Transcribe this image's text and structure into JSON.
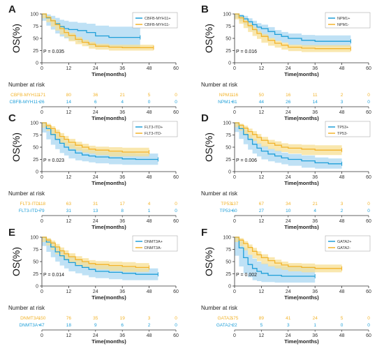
{
  "colors": {
    "blue": "#1f9fd8",
    "orange": "#f2b32a",
    "blue_band": "#a9d7f2",
    "orange_band": "#f7df93"
  },
  "common": {
    "xlabel": "Time(months)",
    "ylabel": "OS(%)",
    "risk_title": "Number at risk",
    "x_ticks": [
      0,
      12,
      24,
      36,
      48,
      60
    ],
    "y_ticks": [
      0,
      25,
      50,
      75,
      100
    ]
  },
  "chart_data": [
    {
      "panel": "A",
      "type": "line",
      "xlim": [
        0,
        60
      ],
      "ylim": [
        0,
        100
      ],
      "pvalue": "P = 0.035",
      "series": [
        {
          "name": "CBFB-MYH11+",
          "color": "#1f9fd8",
          "x": [
            0,
            2,
            4,
            6,
            8,
            10,
            12,
            16,
            20,
            24,
            30,
            36,
            44
          ],
          "y": [
            100,
            92,
            86,
            80,
            74,
            70,
            68,
            66,
            62,
            55,
            52,
            52,
            52
          ],
          "ci_lo": [
            100,
            86,
            76,
            68,
            60,
            54,
            50,
            46,
            42,
            35,
            32,
            32,
            32
          ],
          "ci_hi": [
            100,
            99,
            96,
            92,
            88,
            86,
            84,
            82,
            80,
            76,
            74,
            74,
            74
          ]
        },
        {
          "name": "CBFB-MYH11-",
          "color": "#f2b32a",
          "x": [
            0,
            2,
            4,
            6,
            8,
            10,
            12,
            15,
            18,
            21,
            24,
            30,
            36,
            42,
            50
          ],
          "y": [
            100,
            93,
            86,
            78,
            70,
            62,
            56,
            48,
            42,
            38,
            34,
            32,
            31,
            31,
            31
          ],
          "ci_lo": [
            100,
            91,
            83,
            74,
            66,
            58,
            52,
            44,
            38,
            34,
            29,
            27,
            25,
            25,
            25
          ],
          "ci_hi": [
            100,
            96,
            90,
            83,
            76,
            67,
            61,
            53,
            47,
            43,
            39,
            37,
            37,
            37,
            37
          ]
        }
      ],
      "risk_rows": [
        {
          "label": "CBFB-MYH11-",
          "values": [
            "171",
            "80",
            "36",
            "21",
            "5",
            "0"
          ]
        },
        {
          "label": "CBFB-MYH11+",
          "values": [
            "26",
            "14",
            "6",
            "4",
            "0",
            "0"
          ]
        }
      ]
    },
    {
      "panel": "B",
      "type": "line",
      "xlim": [
        0,
        60
      ],
      "ylim": [
        0,
        100
      ],
      "pvalue": "P = 0.016",
      "series": [
        {
          "name": "NPM1+",
          "color": "#1f9fd8",
          "x": [
            0,
            2,
            4,
            6,
            8,
            10,
            12,
            15,
            18,
            21,
            24,
            30,
            36,
            42,
            52
          ],
          "y": [
            100,
            96,
            90,
            84,
            78,
            73,
            70,
            64,
            58,
            54,
            50,
            46,
            44,
            44,
            44
          ],
          "ci_lo": [
            100,
            92,
            85,
            78,
            71,
            65,
            62,
            55,
            49,
            45,
            41,
            36,
            33,
            33,
            33
          ],
          "ci_hi": [
            100,
            99,
            96,
            91,
            86,
            81,
            78,
            73,
            67,
            63,
            60,
            57,
            56,
            56,
            56
          ]
        },
        {
          "name": "NPM1-",
          "color": "#f2b32a",
          "x": [
            0,
            2,
            4,
            6,
            8,
            10,
            12,
            15,
            18,
            21,
            24,
            30,
            36,
            42,
            52
          ],
          "y": [
            100,
            92,
            84,
            76,
            68,
            60,
            54,
            46,
            40,
            36,
            32,
            30,
            29,
            29,
            29
          ],
          "ci_lo": [
            100,
            89,
            80,
            71,
            63,
            55,
            49,
            41,
            35,
            31,
            27,
            24,
            22,
            22,
            22
          ],
          "ci_hi": [
            100,
            95,
            88,
            81,
            73,
            65,
            59,
            51,
            45,
            41,
            37,
            36,
            36,
            36,
            36
          ]
        }
      ],
      "risk_rows": [
        {
          "label": "NPM1-",
          "values": [
            "116",
            "50",
            "16",
            "11",
            "2",
            "0"
          ]
        },
        {
          "label": "NPM1+",
          "values": [
            "81",
            "44",
            "26",
            "14",
            "3",
            "0"
          ]
        }
      ]
    },
    {
      "panel": "C",
      "type": "line",
      "xlim": [
        0,
        60
      ],
      "ylim": [
        0,
        100
      ],
      "pvalue": "P = 0.023",
      "series": [
        {
          "name": "FLT3-ITD+",
          "color": "#1f9fd8",
          "x": [
            0,
            2,
            4,
            6,
            8,
            10,
            12,
            15,
            18,
            21,
            24,
            30,
            36,
            42,
            48,
            52
          ],
          "y": [
            100,
            88,
            76,
            66,
            58,
            50,
            44,
            38,
            34,
            32,
            30,
            28,
            26,
            25,
            25,
            25
          ],
          "ci_lo": [
            100,
            80,
            66,
            55,
            46,
            38,
            33,
            27,
            23,
            21,
            19,
            17,
            15,
            14,
            14,
            14
          ],
          "ci_hi": [
            100,
            95,
            86,
            78,
            70,
            62,
            56,
            50,
            46,
            44,
            42,
            40,
            38,
            37,
            37,
            37
          ]
        },
        {
          "name": "FLT3-ITD-",
          "color": "#f2b32a",
          "x": [
            0,
            2,
            4,
            6,
            8,
            10,
            12,
            15,
            18,
            21,
            24,
            30,
            36,
            42,
            48
          ],
          "y": [
            100,
            94,
            88,
            80,
            72,
            66,
            60,
            54,
            50,
            46,
            44,
            42,
            40,
            40,
            40
          ],
          "ci_lo": [
            100,
            90,
            83,
            74,
            65,
            59,
            53,
            47,
            43,
            39,
            37,
            34,
            31,
            31,
            31
          ],
          "ci_hi": [
            100,
            98,
            93,
            86,
            79,
            73,
            67,
            61,
            57,
            53,
            51,
            50,
            49,
            49,
            49
          ]
        }
      ],
      "risk_rows": [
        {
          "label": "FLT3-ITD-",
          "values": [
            "118",
            "63",
            "31",
            "17",
            "4",
            "0"
          ]
        },
        {
          "label": "FLT3-ITD+",
          "values": [
            "79",
            "31",
            "13",
            "8",
            "1",
            "0"
          ]
        }
      ]
    },
    {
      "panel": "D",
      "type": "line",
      "xlim": [
        0,
        60
      ],
      "ylim": [
        0,
        100
      ],
      "pvalue": "P = 0.006",
      "series": [
        {
          "name": "TP53+",
          "color": "#1f9fd8",
          "x": [
            0,
            2,
            4,
            6,
            8,
            10,
            12,
            15,
            18,
            21,
            24,
            30,
            36,
            42,
            48
          ],
          "y": [
            100,
            88,
            76,
            66,
            56,
            48,
            42,
            36,
            32,
            28,
            25,
            22,
            18,
            16,
            16
          ],
          "ci_lo": [
            100,
            81,
            67,
            56,
            45,
            37,
            31,
            25,
            21,
            18,
            15,
            12,
            8,
            6,
            6
          ],
          "ci_hi": [
            100,
            95,
            85,
            76,
            67,
            59,
            53,
            47,
            43,
            39,
            36,
            33,
            29,
            27,
            27
          ]
        },
        {
          "name": "TP53-",
          "color": "#f2b32a",
          "x": [
            0,
            2,
            4,
            6,
            8,
            10,
            12,
            15,
            18,
            21,
            24,
            30,
            36,
            42,
            48
          ],
          "y": [
            100,
            95,
            89,
            82,
            76,
            70,
            64,
            58,
            54,
            50,
            48,
            46,
            44,
            44,
            44
          ],
          "ci_lo": [
            100,
            91,
            84,
            76,
            69,
            63,
            57,
            51,
            46,
            42,
            40,
            37,
            34,
            34,
            34
          ],
          "ci_hi": [
            100,
            98,
            94,
            88,
            83,
            77,
            71,
            65,
            62,
            58,
            56,
            55,
            54,
            54,
            54
          ]
        }
      ],
      "risk_rows": [
        {
          "label": "TP53-",
          "values": [
            "137",
            "67",
            "34",
            "21",
            "3",
            "0"
          ]
        },
        {
          "label": "TP53+",
          "values": [
            "60",
            "27",
            "10",
            "4",
            "2",
            "0"
          ]
        }
      ]
    },
    {
      "panel": "E",
      "type": "line",
      "xlim": [
        0,
        60
      ],
      "ylim": [
        0,
        100
      ],
      "pvalue": "P = 0.014",
      "series": [
        {
          "name": "DNMT3A+",
          "color": "#1f9fd8",
          "x": [
            0,
            2,
            4,
            6,
            8,
            10,
            12,
            15,
            18,
            21,
            24,
            30,
            36,
            42,
            48,
            52
          ],
          "y": [
            100,
            90,
            80,
            70,
            62,
            54,
            48,
            42,
            38,
            34,
            30,
            28,
            26,
            24,
            24,
            24
          ],
          "ci_lo": [
            100,
            82,
            70,
            59,
            50,
            42,
            36,
            30,
            26,
            22,
            18,
            16,
            14,
            12,
            12,
            12
          ],
          "ci_hi": [
            100,
            97,
            90,
            81,
            74,
            66,
            60,
            54,
            50,
            46,
            42,
            40,
            38,
            36,
            36,
            36
          ]
        },
        {
          "name": "DNMT3A-",
          "color": "#f2b32a",
          "x": [
            0,
            2,
            4,
            6,
            8,
            10,
            12,
            15,
            18,
            21,
            24,
            30,
            36,
            42,
            48
          ],
          "y": [
            100,
            94,
            88,
            80,
            72,
            66,
            60,
            54,
            50,
            46,
            44,
            42,
            40,
            38,
            38
          ],
          "ci_lo": [
            100,
            90,
            83,
            74,
            65,
            59,
            53,
            47,
            43,
            39,
            37,
            34,
            31,
            29,
            29
          ],
          "ci_hi": [
            100,
            98,
            93,
            86,
            79,
            73,
            67,
            61,
            57,
            53,
            51,
            50,
            49,
            47,
            47
          ]
        }
      ],
      "risk_rows": [
        {
          "label": "DNMT3A-",
          "values": [
            "150",
            "76",
            "35",
            "19",
            "3",
            "0"
          ]
        },
        {
          "label": "DNMT3A+",
          "values": [
            "47",
            "18",
            "9",
            "6",
            "2",
            "0"
          ]
        }
      ]
    },
    {
      "panel": "F",
      "type": "line",
      "xlim": [
        0,
        60
      ],
      "ylim": [
        0,
        100
      ],
      "pvalue": "P = 0.002",
      "series": [
        {
          "name": "GATA2+",
          "color": "#1f9fd8",
          "x": [
            0,
            2,
            4,
            6,
            8,
            10,
            12,
            15,
            18,
            21,
            24,
            30,
            36
          ],
          "y": [
            100,
            78,
            58,
            44,
            36,
            30,
            26,
            22,
            22,
            20,
            20,
            20,
            20
          ],
          "ci_lo": [
            100,
            62,
            40,
            26,
            18,
            12,
            10,
            8,
            8,
            7,
            7,
            7,
            7
          ],
          "ci_hi": [
            100,
            92,
            78,
            64,
            56,
            50,
            46,
            42,
            42,
            40,
            40,
            40,
            40
          ]
        },
        {
          "name": "GATA2-",
          "color": "#f2b32a",
          "x": [
            0,
            2,
            4,
            6,
            8,
            10,
            12,
            15,
            18,
            21,
            24,
            30,
            36,
            42,
            48
          ],
          "y": [
            100,
            94,
            87,
            79,
            71,
            64,
            58,
            52,
            47,
            43,
            40,
            38,
            36,
            36,
            36
          ],
          "ci_lo": [
            100,
            90,
            82,
            73,
            64,
            57,
            51,
            45,
            40,
            36,
            33,
            30,
            28,
            28,
            28
          ],
          "ci_hi": [
            100,
            98,
            92,
            85,
            78,
            71,
            65,
            59,
            54,
            50,
            47,
            46,
            44,
            44,
            44
          ]
        }
      ],
      "risk_rows": [
        {
          "label": "GATA2-",
          "values": [
            "175",
            "89",
            "41",
            "24",
            "5",
            "0"
          ]
        },
        {
          "label": "GATA2+",
          "values": [
            "22",
            "5",
            "3",
            "1",
            "0",
            "0"
          ]
        }
      ]
    }
  ]
}
